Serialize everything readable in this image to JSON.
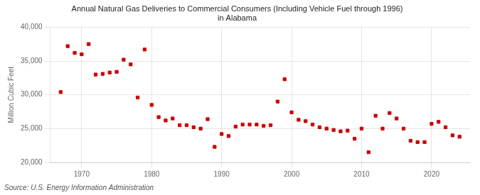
{
  "chart_data": {
    "type": "scatter",
    "title": "Annual Natural Gas Deliveries to Commercial Consumers (Including Vehicle Fuel through 1996)\nin Alabama",
    "y_label": "Million Cubic Feet",
    "annotations": [
      "Source: U.S. Energy Information Administration"
    ],
    "x": [
      1967,
      1968,
      1969,
      1970,
      1971,
      1972,
      1973,
      1974,
      1975,
      1976,
      1977,
      1978,
      1979,
      1980,
      1981,
      1982,
      1983,
      1984,
      1985,
      1986,
      1987,
      1988,
      1989,
      1990,
      1991,
      1992,
      1993,
      1994,
      1995,
      1996,
      1997,
      1998,
      1999,
      2000,
      2001,
      2002,
      2003,
      2004,
      2005,
      2006,
      2007,
      2008,
      2009,
      2010,
      2011,
      2012,
      2013,
      2014,
      2015,
      2016,
      2017,
      2018,
      2019,
      2020,
      2021,
      2022,
      2023,
      2024
    ],
    "values": [
      30400,
      37200,
      36200,
      36000,
      37500,
      33000,
      33100,
      33300,
      33400,
      35200,
      34500,
      29600,
      36700,
      28500,
      26700,
      26200,
      26500,
      25500,
      25500,
      25200,
      25000,
      26400,
      22300,
      24200,
      23900,
      25300,
      25600,
      25600,
      25600,
      25400,
      25500,
      29000,
      32300,
      27400,
      26300,
      26100,
      25600,
      25200,
      25000,
      24800,
      24600,
      24700,
      23500,
      25000,
      21500,
      26900,
      25000,
      27300,
      26500,
      25000,
      23200,
      23000,
      23000,
      25700,
      26000,
      25200,
      24000,
      23800
    ],
    "color": "#cc0000",
    "marker": "square",
    "xlim": [
      1965.5,
      2025.5
    ],
    "xticks": [
      1970,
      1980,
      1990,
      2000,
      2010,
      2020
    ],
    "ylim": [
      20000,
      40000
    ],
    "yticks": [
      {
        "value": 20000,
        "label": "20,000"
      },
      {
        "value": 25000,
        "label": "25,000"
      },
      {
        "value": 30000,
        "label": "30,000"
      },
      {
        "value": 35000,
        "label": "35,000"
      },
      {
        "value": 40000,
        "label": "40,000"
      }
    ],
    "grid": true
  }
}
